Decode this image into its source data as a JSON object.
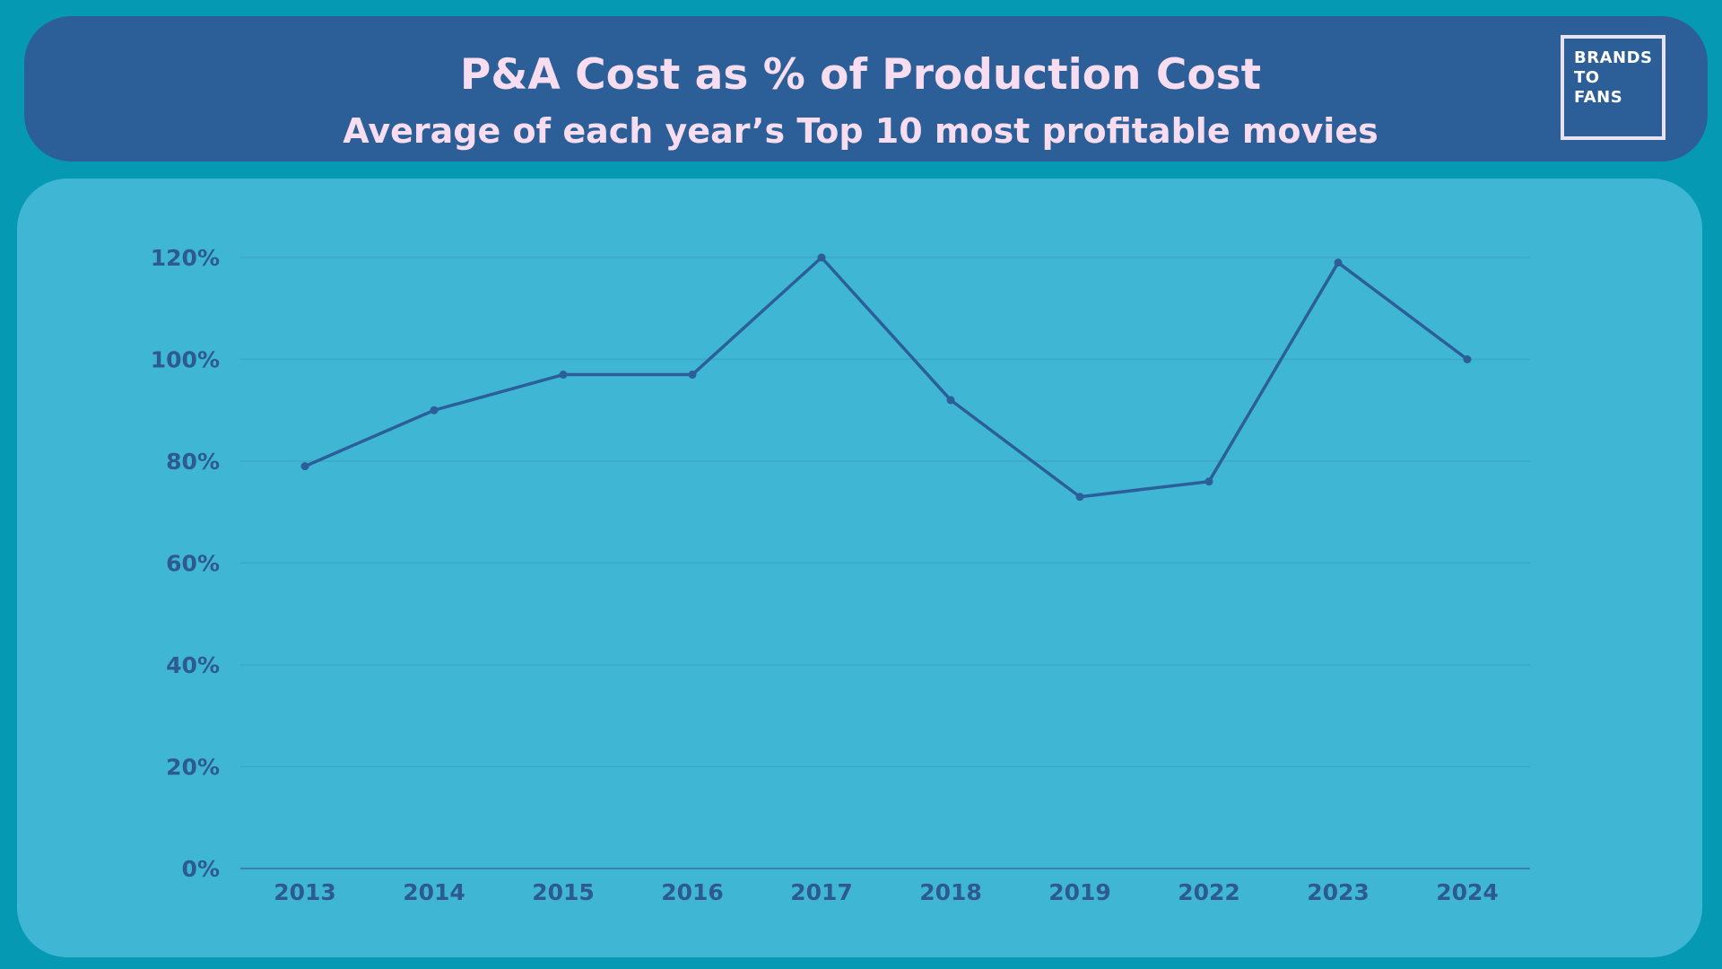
{
  "header": {
    "title": "P&A Cost as % of Production Cost",
    "subtitle": "Average of each year’s Top 10 most profitable movies",
    "logo_lines": [
      "BRANDS",
      "TO",
      "FANS"
    ]
  },
  "colors": {
    "background": "#0599b3",
    "header_bg": "#2c5f97",
    "panel_bg": "#40b6d5",
    "line": "#2c5f97",
    "title_text": "#f8dcef"
  },
  "chart_data": {
    "type": "line",
    "title": "P&A Cost as % of Production Cost",
    "subtitle": "Average of each year’s Top 10 most profitable movies",
    "xlabel": "",
    "ylabel": "",
    "categories": [
      "2013",
      "2014",
      "2015",
      "2016",
      "2017",
      "2018",
      "2019",
      "2022",
      "2023",
      "2024"
    ],
    "series": [
      {
        "values": [
          79,
          90,
          97,
          97,
          120,
          92,
          73,
          76,
          119,
          100
        ]
      }
    ],
    "ylim": [
      0,
      120
    ],
    "y_ticks": [
      0,
      20,
      40,
      60,
      80,
      100,
      120
    ],
    "y_tick_labels": [
      "0%",
      "20%",
      "40%",
      "60%",
      "80%",
      "100%",
      "120%"
    ],
    "grid": true,
    "legend": "none"
  }
}
